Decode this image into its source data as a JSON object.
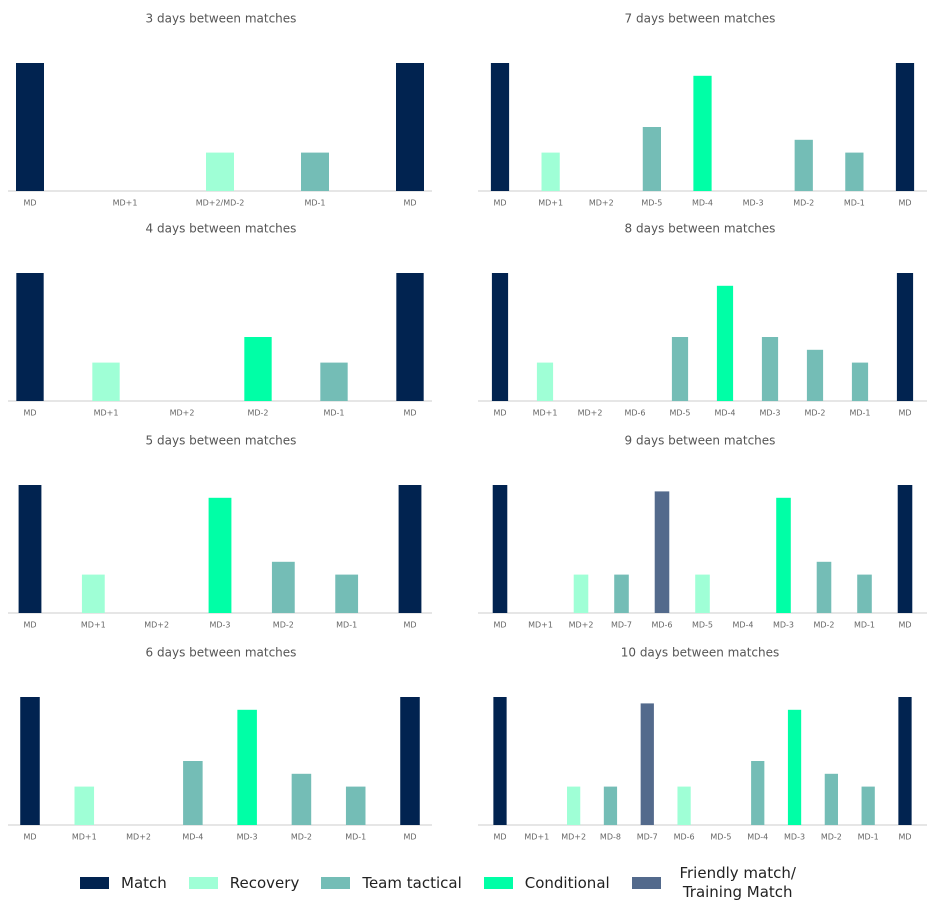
{
  "chart_data": [
    {
      "type": "bar",
      "title": "3 days between matches",
      "categories": [
        "MD",
        "MD+1",
        "MD+2/MD-2",
        "MD-1",
        "MD"
      ],
      "values": [
        10,
        null,
        3,
        3,
        10
      ],
      "colors": [
        "#012350",
        null,
        "#9fffd6",
        "#74bdb6",
        "#012350"
      ],
      "ylim": [
        0,
        10
      ]
    },
    {
      "type": "bar",
      "title": "7 days between matches",
      "categories": [
        "MD",
        "MD+1",
        "MD+2",
        "MD-5",
        "MD-4",
        "MD-3",
        "MD-2",
        "MD-1",
        "MD"
      ],
      "values": [
        10,
        3,
        null,
        5,
        9,
        null,
        4,
        3,
        10
      ],
      "colors": [
        "#012350",
        "#9fffd6",
        null,
        "#74bdb6",
        "#00ffa6",
        null,
        "#74bdb6",
        "#74bdb6",
        "#012350"
      ],
      "ylim": [
        0,
        10
      ]
    },
    {
      "type": "bar",
      "title": "4 days between matches",
      "categories": [
        "MD",
        "MD+1",
        "MD+2",
        "MD-2",
        "MD-1",
        "MD"
      ],
      "values": [
        10,
        3,
        null,
        5,
        3,
        10
      ],
      "colors": [
        "#012350",
        "#9fffd6",
        null,
        "#00ffa6",
        "#74bdb6",
        "#012350"
      ],
      "ylim": [
        0,
        10
      ]
    },
    {
      "type": "bar",
      "title": "8 days between matches",
      "categories": [
        "MD",
        "MD+1",
        "MD+2",
        "MD-6",
        "MD-5",
        "MD-4",
        "MD-3",
        "MD-2",
        "MD-1",
        "MD"
      ],
      "values": [
        10,
        3,
        null,
        null,
        5,
        9,
        5,
        4,
        3,
        10
      ],
      "colors": [
        "#012350",
        "#9fffd6",
        null,
        null,
        "#74bdb6",
        "#00ffa6",
        "#74bdb6",
        "#74bdb6",
        "#74bdb6",
        "#012350"
      ],
      "ylim": [
        0,
        10
      ]
    },
    {
      "type": "bar",
      "title": "5 days between matches",
      "categories": [
        "MD",
        "MD+1",
        "MD+2",
        "MD-3",
        "MD-2",
        "MD-1",
        "MD"
      ],
      "values": [
        10,
        3,
        null,
        9,
        4,
        3,
        10
      ],
      "colors": [
        "#012350",
        "#9fffd6",
        null,
        "#00ffa6",
        "#74bdb6",
        "#74bdb6",
        "#012350"
      ],
      "ylim": [
        0,
        10
      ]
    },
    {
      "type": "bar",
      "title": "9 days between matches",
      "categories": [
        "MD",
        "MD+1",
        "MD+2",
        "MD-7",
        "MD-6",
        "MD-5",
        "MD-4",
        "MD-3",
        "MD-2",
        "MD-1",
        "MD"
      ],
      "values": [
        10,
        null,
        3,
        3,
        9.5,
        3,
        null,
        9,
        4,
        3,
        10
      ],
      "colors": [
        "#012350",
        null,
        "#9fffd6",
        "#74bdb6",
        "#536a8c",
        "#9fffd6",
        null,
        "#00ffa6",
        "#74bdb6",
        "#74bdb6",
        "#012350"
      ],
      "ylim": [
        0,
        10
      ]
    },
    {
      "type": "bar",
      "title": "6 days between matches",
      "categories": [
        "MD",
        "MD+1",
        "MD+2",
        "MD-4",
        "MD-3",
        "MD-2",
        "MD-1",
        "MD"
      ],
      "values": [
        10,
        3,
        null,
        5,
        9,
        4,
        3,
        10
      ],
      "colors": [
        "#012350",
        "#9fffd6",
        null,
        "#74bdb6",
        "#00ffa6",
        "#74bdb6",
        "#74bdb6",
        "#012350"
      ],
      "ylim": [
        0,
        10
      ]
    },
    {
      "type": "bar",
      "title": "10 days between matches",
      "categories": [
        "MD",
        "MD+1",
        "MD+2",
        "MD-8",
        "MD-7",
        "MD-6",
        "MD-5",
        "MD-4",
        "MD-3",
        "MD-2",
        "MD-1",
        "MD"
      ],
      "values": [
        10,
        null,
        3,
        3,
        9.5,
        3,
        null,
        5,
        9,
        4,
        3,
        10
      ],
      "colors": [
        "#012350",
        null,
        "#9fffd6",
        "#74bdb6",
        "#536a8c",
        "#9fffd6",
        null,
        "#74bdb6",
        "#00ffa6",
        "#74bdb6",
        "#74bdb6",
        "#012350"
      ],
      "ylim": [
        0,
        10
      ]
    }
  ],
  "legend": [
    {
      "name": "Match",
      "color": "#012350"
    },
    {
      "name": "Recovery",
      "color": "#9fffd6"
    },
    {
      "name": "Team tactical",
      "color": "#74bdb6"
    },
    {
      "name": "Conditional",
      "color": "#00ffa6"
    },
    {
      "name": "Friendly match/ Training Match",
      "color": "#536a8c"
    }
  ]
}
